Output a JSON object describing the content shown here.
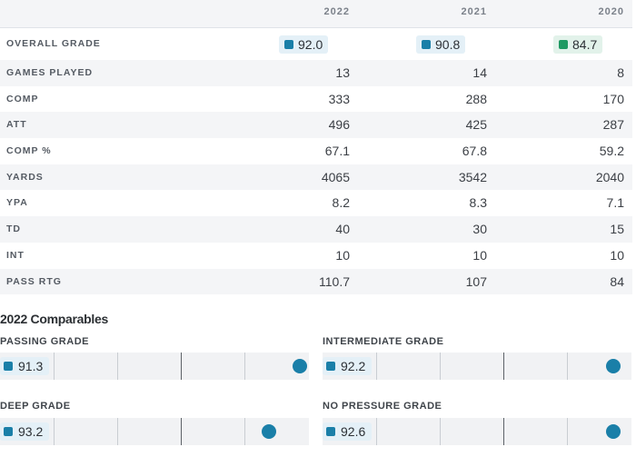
{
  "table": {
    "years": [
      "2022",
      "2021",
      "2020"
    ],
    "rows": [
      {
        "label": "OVERALL GRADE",
        "values": [
          "92.0",
          "90.8",
          "84.7"
        ]
      },
      {
        "label": "GAMES PLAYED",
        "values": [
          "13",
          "14",
          "8"
        ]
      },
      {
        "label": "COMP",
        "values": [
          "333",
          "288",
          "170"
        ]
      },
      {
        "label": "ATT",
        "values": [
          "496",
          "425",
          "287"
        ]
      },
      {
        "label": "COMP %",
        "values": [
          "67.1",
          "67.8",
          "59.2"
        ]
      },
      {
        "label": "YARDS",
        "values": [
          "4065",
          "3542",
          "2040"
        ]
      },
      {
        "label": "YPA",
        "values": [
          "8.2",
          "8.3",
          "7.1"
        ]
      },
      {
        "label": "TD",
        "values": [
          "40",
          "30",
          "15"
        ]
      },
      {
        "label": "INT",
        "values": [
          "10",
          "10",
          "10"
        ]
      },
      {
        "label": "PASS RTG",
        "values": [
          "110.7",
          "107",
          "84"
        ]
      }
    ],
    "grade_colors": {
      "blue": "#1a7fa8",
      "green": "#1f9a62"
    }
  },
  "comparables": {
    "title": "2022 Comparables",
    "items": [
      {
        "label": "PASSING GRADE",
        "value": "91.3"
      },
      {
        "label": "INTERMEDIATE GRADE",
        "value": "92.2"
      },
      {
        "label": "DEEP GRADE",
        "value": "93.2"
      },
      {
        "label": "NO PRESSURE GRADE",
        "value": "92.6"
      }
    ]
  }
}
